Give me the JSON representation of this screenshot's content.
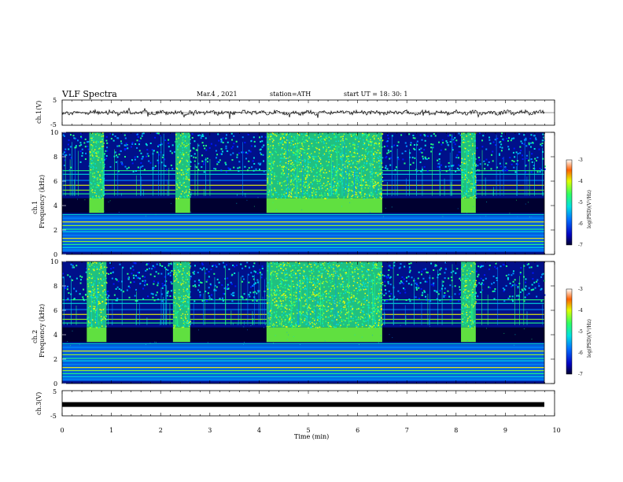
{
  "header": {
    "title": "VLF Spectra",
    "date": "Mar.4 , 2021",
    "station": "station=ATH",
    "start": "start UT = 18: 30: 1"
  },
  "chart_data": [
    {
      "type": "line",
      "ylabel": "ch.1(V)",
      "ylim": [
        -5,
        5
      ],
      "yticks": [
        "5",
        "-5"
      ],
      "xlim": [
        0,
        10
      ],
      "baseline": 0,
      "trace_color": "#000000"
    },
    {
      "type": "heatmap",
      "ylabel_1": "ch.1",
      "ylabel_2": "Frequency (kHz)",
      "ylim": [
        0,
        10
      ],
      "yticks": [
        "0",
        "2",
        "4",
        "6",
        "8",
        "10"
      ],
      "xlim": [
        0,
        10
      ],
      "colorbar": {
        "label": "log(PSD)(V²/Hz)",
        "range": [
          -7,
          -3
        ],
        "ticks": [
          "-3",
          "-4",
          "-5",
          "-6",
          "-7"
        ]
      },
      "burst_intervals_min": [
        [
          0.55,
          0.85
        ],
        [
          2.3,
          2.6
        ],
        [
          4.15,
          6.5
        ],
        [
          8.1,
          8.4
        ]
      ],
      "burst_band_khz": [
        3.4,
        4.6
      ]
    },
    {
      "type": "heatmap",
      "ylabel_1": "ch.2",
      "ylabel_2": "Frequency (kHz)",
      "ylim": [
        0,
        10
      ],
      "yticks": [
        "0",
        "2",
        "4",
        "6",
        "8",
        "10"
      ],
      "xlim": [
        0,
        10
      ],
      "colorbar": {
        "label": "log(PSD)(V²/Hz)",
        "range": [
          -7,
          -3
        ],
        "ticks": [
          "-3",
          "-4",
          "-5",
          "-6",
          "-7"
        ]
      },
      "burst_intervals_min": [
        [
          0.5,
          0.9
        ],
        [
          2.25,
          2.6
        ],
        [
          4.15,
          6.5
        ],
        [
          8.1,
          8.4
        ]
      ],
      "burst_band_khz": [
        3.4,
        4.6
      ]
    },
    {
      "type": "line",
      "ylabel": "ch.3(V)",
      "ylim": [
        -5,
        5
      ],
      "yticks": [
        "5",
        "-5"
      ],
      "xlim": [
        0,
        10
      ],
      "xlabel": "Time (min)",
      "xticks": [
        "0",
        "1",
        "2",
        "3",
        "4",
        "5",
        "6",
        "7",
        "8",
        "9",
        "10"
      ],
      "level": -0.5,
      "trace_color": "#000000"
    }
  ],
  "palette": [
    "#000030",
    "#00008c",
    "#0018ff",
    "#0090ff",
    "#00e0e0",
    "#20ff80",
    "#a0ff20",
    "#ffff00",
    "#ff9000",
    "#ff0000"
  ]
}
